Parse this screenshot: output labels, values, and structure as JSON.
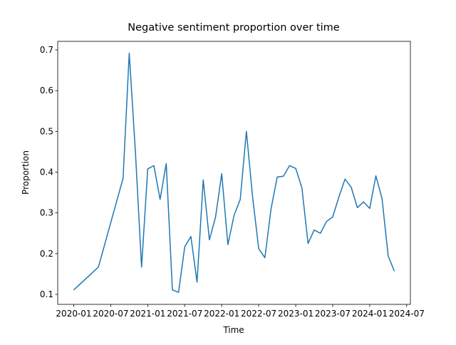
{
  "chart_data": {
    "type": "line",
    "title": "Negative sentiment proportion over time",
    "xlabel": "Time",
    "ylabel": "Proportion",
    "color": "#1f77b4",
    "x": [
      "2020-01",
      "2020-05",
      "2020-09",
      "2020-10",
      "2020-11",
      "2020-12",
      "2021-01",
      "2021-02",
      "2021-03",
      "2021-04",
      "2021-05",
      "2021-06",
      "2021-07",
      "2021-08",
      "2021-09",
      "2021-10",
      "2021-11",
      "2021-12",
      "2022-01",
      "2022-02",
      "2022-03",
      "2022-04",
      "2022-05",
      "2022-06",
      "2022-07",
      "2022-08",
      "2022-09",
      "2022-10",
      "2022-11",
      "2022-12",
      "2023-01",
      "2023-02",
      "2023-03",
      "2023-04",
      "2023-05",
      "2023-06",
      "2023-07",
      "2023-08",
      "2023-09",
      "2023-10",
      "2023-11",
      "2023-12",
      "2024-01",
      "2024-02",
      "2024-03",
      "2024-04",
      "2024-05"
    ],
    "values": [
      0.111,
      0.167,
      0.385,
      0.692,
      0.45,
      0.167,
      0.408,
      0.416,
      0.333,
      0.421,
      0.111,
      0.105,
      0.217,
      0.242,
      0.13,
      0.381,
      0.234,
      0.29,
      0.396,
      0.222,
      0.294,
      0.333,
      0.5,
      0.34,
      0.212,
      0.19,
      0.31,
      0.388,
      0.39,
      0.416,
      0.409,
      0.362,
      0.225,
      0.258,
      0.25,
      0.279,
      0.29,
      0.339,
      0.383,
      0.363,
      0.313,
      0.327,
      0.311,
      0.391,
      0.335,
      0.194,
      0.157
    ],
    "xticks": [
      "2020-01",
      "2020-07",
      "2021-01",
      "2021-07",
      "2022-01",
      "2022-07",
      "2023-01",
      "2023-07",
      "2024-01",
      "2024-07"
    ],
    "ylim": [
      0.0755,
      0.721
    ],
    "yticks": [
      0.1,
      0.2,
      0.3,
      0.4,
      0.5,
      0.6,
      0.7
    ]
  }
}
